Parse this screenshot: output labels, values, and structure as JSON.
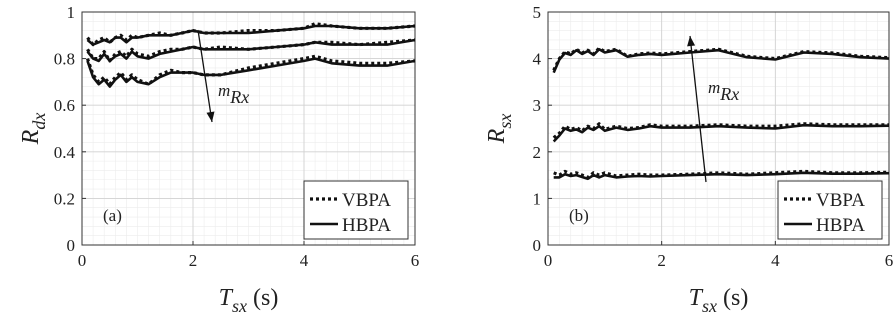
{
  "chart_data": [
    {
      "type": "line",
      "panel_label": "(a)",
      "xlabel": "T_sx (s)",
      "ylabel": "R_dx",
      "xlim": [
        0,
        6
      ],
      "ylim": [
        0,
        1
      ],
      "xticks": [
        "0",
        "2",
        "4",
        "6"
      ],
      "yticks": [
        "0",
        "0.2",
        "0.4",
        "0.6",
        "0.8",
        "1"
      ],
      "grid": true,
      "legend": {
        "placement": "bottom-right",
        "entries": [
          "VBPA",
          "HBPA"
        ]
      },
      "annotation": {
        "text": "m_Rx",
        "direction": "decreasing"
      },
      "series": [
        {
          "name": "VBPA",
          "group": "top",
          "x": [
            0.1,
            0.2,
            0.3,
            0.4,
            0.5,
            0.6,
            0.7,
            0.8,
            0.9,
            1.0,
            1.2,
            1.4,
            1.6,
            1.8,
            2.0,
            2.2,
            2.5,
            3.0,
            3.5,
            4.0,
            4.2,
            4.5,
            5.0,
            5.5,
            6.0
          ],
          "y": [
            0.89,
            0.86,
            0.88,
            0.89,
            0.87,
            0.89,
            0.9,
            0.88,
            0.9,
            0.89,
            0.9,
            0.91,
            0.9,
            0.91,
            0.92,
            0.91,
            0.91,
            0.92,
            0.92,
            0.93,
            0.95,
            0.94,
            0.93,
            0.93,
            0.94
          ]
        },
        {
          "name": "HBPA",
          "group": "top",
          "x": [
            0.1,
            0.2,
            0.3,
            0.4,
            0.5,
            0.6,
            0.7,
            0.8,
            0.9,
            1.0,
            1.2,
            1.4,
            1.6,
            1.8,
            2.0,
            2.2,
            2.5,
            3.0,
            3.5,
            4.0,
            4.2,
            4.5,
            5.0,
            5.5,
            6.0
          ],
          "y": [
            0.88,
            0.86,
            0.87,
            0.88,
            0.87,
            0.89,
            0.89,
            0.87,
            0.89,
            0.89,
            0.9,
            0.9,
            0.9,
            0.91,
            0.92,
            0.91,
            0.91,
            0.91,
            0.92,
            0.93,
            0.94,
            0.94,
            0.93,
            0.93,
            0.94
          ]
        },
        {
          "name": "VBPA",
          "group": "middle",
          "x": [
            0.1,
            0.2,
            0.3,
            0.4,
            0.5,
            0.6,
            0.7,
            0.8,
            0.9,
            1.0,
            1.2,
            1.4,
            1.6,
            1.8,
            2.0,
            2.2,
            2.5,
            3.0,
            3.5,
            4.0,
            4.2,
            4.5,
            5.0,
            5.5,
            6.0
          ],
          "y": [
            0.84,
            0.8,
            0.8,
            0.83,
            0.79,
            0.82,
            0.83,
            0.81,
            0.84,
            0.82,
            0.81,
            0.83,
            0.84,
            0.84,
            0.85,
            0.84,
            0.85,
            0.84,
            0.85,
            0.86,
            0.87,
            0.87,
            0.86,
            0.87,
            0.88
          ]
        },
        {
          "name": "HBPA",
          "group": "middle",
          "x": [
            0.1,
            0.2,
            0.3,
            0.4,
            0.5,
            0.6,
            0.7,
            0.8,
            0.9,
            1.0,
            1.2,
            1.4,
            1.6,
            1.8,
            2.0,
            2.2,
            2.5,
            3.0,
            3.5,
            4.0,
            4.2,
            4.5,
            5.0,
            5.5,
            6.0
          ],
          "y": [
            0.83,
            0.8,
            0.79,
            0.82,
            0.79,
            0.81,
            0.82,
            0.8,
            0.83,
            0.81,
            0.8,
            0.82,
            0.83,
            0.84,
            0.85,
            0.84,
            0.84,
            0.84,
            0.85,
            0.86,
            0.87,
            0.86,
            0.86,
            0.86,
            0.88
          ]
        },
        {
          "name": "VBPA",
          "group": "bottom",
          "x": [
            0.1,
            0.2,
            0.3,
            0.4,
            0.5,
            0.6,
            0.7,
            0.8,
            0.9,
            1.0,
            1.2,
            1.4,
            1.6,
            1.8,
            2.0,
            2.2,
            2.5,
            3.0,
            3.5,
            4.0,
            4.2,
            4.5,
            5.0,
            5.5,
            6.0
          ],
          "y": [
            0.8,
            0.73,
            0.7,
            0.72,
            0.69,
            0.72,
            0.74,
            0.71,
            0.73,
            0.71,
            0.69,
            0.73,
            0.75,
            0.74,
            0.74,
            0.73,
            0.73,
            0.76,
            0.78,
            0.8,
            0.81,
            0.79,
            0.78,
            0.78,
            0.79
          ]
        },
        {
          "name": "HBPA",
          "group": "bottom",
          "x": [
            0.1,
            0.2,
            0.3,
            0.4,
            0.5,
            0.6,
            0.7,
            0.8,
            0.9,
            1.0,
            1.2,
            1.4,
            1.6,
            1.8,
            2.0,
            2.2,
            2.5,
            3.0,
            3.5,
            4.0,
            4.2,
            4.5,
            5.0,
            5.5,
            6.0
          ],
          "y": [
            0.79,
            0.72,
            0.69,
            0.71,
            0.68,
            0.71,
            0.73,
            0.7,
            0.72,
            0.7,
            0.69,
            0.72,
            0.74,
            0.74,
            0.74,
            0.73,
            0.73,
            0.75,
            0.77,
            0.79,
            0.8,
            0.78,
            0.77,
            0.77,
            0.79
          ]
        }
      ]
    },
    {
      "type": "line",
      "panel_label": "(b)",
      "xlabel": "T_sx (s)",
      "ylabel": "R_sx",
      "xlim": [
        0,
        6
      ],
      "ylim": [
        0,
        5
      ],
      "xticks": [
        "0",
        "2",
        "4",
        "6"
      ],
      "yticks": [
        "0",
        "1",
        "2",
        "3",
        "4",
        "5"
      ],
      "grid": true,
      "legend": {
        "placement": "bottom-right",
        "entries": [
          "VBPA",
          "HBPA"
        ]
      },
      "annotation": {
        "text": "m_Rx",
        "direction": "increasing"
      },
      "series": [
        {
          "name": "VBPA",
          "group": "top",
          "x": [
            0.1,
            0.2,
            0.3,
            0.4,
            0.5,
            0.6,
            0.7,
            0.8,
            0.9,
            1.0,
            1.2,
            1.4,
            1.6,
            1.8,
            2.0,
            2.5,
            3.0,
            3.5,
            4.0,
            4.5,
            5.0,
            5.5,
            6.0
          ],
          "y": [
            3.75,
            4.0,
            4.15,
            4.1,
            4.2,
            4.12,
            4.18,
            4.1,
            4.22,
            4.15,
            4.2,
            4.05,
            4.1,
            4.12,
            4.1,
            4.15,
            4.2,
            4.05,
            4.0,
            4.15,
            4.12,
            4.05,
            4.02
          ]
        },
        {
          "name": "HBPA",
          "group": "top",
          "x": [
            0.1,
            0.2,
            0.3,
            0.4,
            0.5,
            0.6,
            0.7,
            0.8,
            0.9,
            1.0,
            1.2,
            1.4,
            1.6,
            1.8,
            2.0,
            2.5,
            3.0,
            3.5,
            4.0,
            4.5,
            5.0,
            5.5,
            6.0
          ],
          "y": [
            3.7,
            3.98,
            4.12,
            4.08,
            4.18,
            4.1,
            4.16,
            4.08,
            4.2,
            4.13,
            4.18,
            4.04,
            4.08,
            4.1,
            4.08,
            4.13,
            4.18,
            4.03,
            3.98,
            4.13,
            4.1,
            4.03,
            4.0
          ]
        },
        {
          "name": "VBPA",
          "group": "middle",
          "x": [
            0.1,
            0.2,
            0.3,
            0.4,
            0.5,
            0.6,
            0.7,
            0.8,
            0.9,
            1.0,
            1.2,
            1.4,
            1.6,
            1.8,
            2.0,
            2.5,
            3.0,
            3.5,
            4.0,
            4.5,
            5.0,
            5.5,
            6.0
          ],
          "y": [
            2.3,
            2.4,
            2.55,
            2.48,
            2.52,
            2.45,
            2.55,
            2.5,
            2.6,
            2.48,
            2.55,
            2.5,
            2.52,
            2.58,
            2.55,
            2.55,
            2.58,
            2.55,
            2.55,
            2.6,
            2.58,
            2.58,
            2.58
          ]
        },
        {
          "name": "HBPA",
          "group": "middle",
          "x": [
            0.1,
            0.2,
            0.3,
            0.4,
            0.5,
            0.6,
            0.7,
            0.8,
            0.9,
            1.0,
            1.2,
            1.4,
            1.6,
            1.8,
            2.0,
            2.5,
            3.0,
            3.5,
            4.0,
            4.5,
            5.0,
            5.5,
            6.0
          ],
          "y": [
            2.22,
            2.35,
            2.5,
            2.45,
            2.48,
            2.42,
            2.52,
            2.47,
            2.55,
            2.45,
            2.52,
            2.47,
            2.5,
            2.55,
            2.52,
            2.52,
            2.55,
            2.52,
            2.5,
            2.57,
            2.55,
            2.55,
            2.56
          ]
        },
        {
          "name": "VBPA",
          "group": "bottom",
          "x": [
            0.1,
            0.2,
            0.3,
            0.4,
            0.5,
            0.6,
            0.7,
            0.8,
            0.9,
            1.0,
            1.2,
            1.4,
            1.6,
            1.8,
            2.0,
            2.5,
            3.0,
            3.5,
            4.0,
            4.5,
            5.0,
            5.5,
            6.0
          ],
          "y": [
            1.55,
            1.5,
            1.58,
            1.52,
            1.55,
            1.5,
            1.45,
            1.55,
            1.5,
            1.55,
            1.48,
            1.5,
            1.52,
            1.5,
            1.5,
            1.52,
            1.55,
            1.52,
            1.55,
            1.58,
            1.55,
            1.55,
            1.56
          ]
        },
        {
          "name": "HBPA",
          "group": "bottom",
          "x": [
            0.1,
            0.2,
            0.3,
            0.4,
            0.5,
            0.6,
            0.7,
            0.8,
            0.9,
            1.0,
            1.2,
            1.4,
            1.6,
            1.8,
            2.0,
            2.5,
            3.0,
            3.5,
            4.0,
            4.5,
            5.0,
            5.5,
            6.0
          ],
          "y": [
            1.45,
            1.45,
            1.52,
            1.48,
            1.5,
            1.46,
            1.42,
            1.5,
            1.45,
            1.5,
            1.45,
            1.47,
            1.48,
            1.47,
            1.48,
            1.5,
            1.52,
            1.5,
            1.52,
            1.55,
            1.53,
            1.53,
            1.54
          ]
        }
      ]
    }
  ]
}
